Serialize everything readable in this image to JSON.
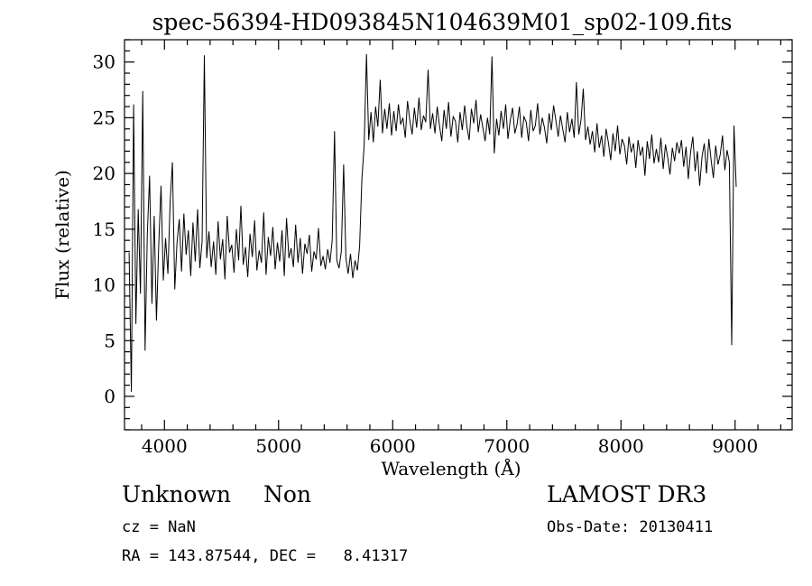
{
  "title": "spec-56394-HD093845N104639M01_sp02-109.fits",
  "chart_data": {
    "type": "line",
    "title": "spec-56394-HD093845N104639M01_sp02-109.fits",
    "xlabel": "Wavelength (Å)",
    "ylabel": "Flux (relative)",
    "xlim": [
      3650,
      9500
    ],
    "ylim": [
      -3,
      32
    ],
    "xticks": [
      4000,
      5000,
      6000,
      7000,
      8000,
      9000
    ],
    "yticks": [
      0,
      5,
      10,
      15,
      20,
      25,
      30
    ],
    "minor_xtick_step": 200,
    "minor_ytick_step": 1,
    "grid": false,
    "line_color": "#000000",
    "series": [
      {
        "name": "flux",
        "x_start": 3690,
        "x_step": 20,
        "values": [
          12.9,
          0.4,
          26.2,
          6.5,
          16.8,
          9.2,
          27.4,
          4.1,
          14.6,
          19.8,
          8.3,
          16.2,
          6.8,
          13.5,
          18.9,
          10.4,
          14.2,
          11.0,
          17.5,
          21.0,
          9.6,
          13.8,
          15.9,
          11.2,
          16.4,
          12.7,
          14.9,
          10.8,
          15.6,
          12.1,
          16.8,
          11.5,
          13.9,
          30.6,
          12.4,
          14.8,
          11.6,
          13.9,
          10.9,
          15.7,
          12.3,
          14.1,
          10.5,
          16.2,
          12.9,
          13.6,
          11.1,
          15.0,
          12.2,
          17.1,
          11.8,
          13.4,
          10.7,
          14.6,
          12.5,
          15.8,
          11.3,
          13.1,
          12.0,
          16.5,
          10.9,
          14.3,
          12.6,
          15.2,
          11.4,
          13.8,
          12.1,
          14.9,
          10.8,
          16.0,
          12.4,
          13.3,
          11.6,
          15.4,
          12.0,
          14.2,
          11.0,
          13.7,
          12.8,
          14.5,
          11.2,
          13.0,
          12.3,
          15.1,
          11.7,
          12.6,
          11.4,
          13.2,
          12.0,
          14.0,
          23.8,
          12.2,
          11.5,
          13.0,
          20.8,
          12.4,
          11.0,
          12.8,
          10.6,
          12.2,
          11.3,
          13.5,
          19.5,
          22.5,
          30.7,
          23.0,
          25.5,
          22.8,
          26.0,
          24.2,
          28.4,
          23.6,
          25.8,
          24.0,
          26.3,
          23.4,
          25.6,
          23.8,
          26.2,
          24.4,
          25.0,
          23.2,
          26.5,
          24.8,
          23.5,
          25.9,
          24.1,
          26.8,
          23.9,
          25.2,
          24.6,
          29.3,
          24.0,
          25.4,
          23.6,
          26.0,
          24.3,
          22.9,
          25.7,
          24.0,
          26.4,
          23.3,
          25.1,
          24.7,
          22.8,
          25.5,
          23.9,
          26.1,
          24.2,
          23.0,
          25.8,
          24.5,
          26.6,
          23.7,
          25.3,
          24.1,
          22.9,
          25.0,
          23.5,
          30.5,
          21.8,
          24.9,
          23.4,
          25.6,
          24.0,
          26.2,
          23.1,
          24.8,
          25.9,
          23.6,
          24.4,
          26.0,
          23.2,
          25.1,
          24.6,
          22.9,
          25.7,
          23.8,
          24.3,
          26.3,
          23.5,
          25.0,
          24.1,
          22.7,
          25.4,
          23.9,
          26.1,
          24.7,
          23.3,
          25.2,
          24.0,
          22.8,
          25.5,
          23.7,
          24.9,
          23.2,
          28.2,
          23.5,
          24.8,
          27.6,
          23.0,
          24.2,
          22.6,
          23.8,
          21.9,
          24.5,
          22.3,
          23.4,
          21.5,
          24.0,
          22.8,
          21.2,
          23.6,
          22.0,
          24.3,
          21.7,
          23.1,
          22.5,
          20.8,
          23.3,
          21.9,
          22.7,
          20.5,
          23.0,
          21.6,
          22.4,
          19.8,
          22.9,
          21.3,
          23.5,
          20.9,
          22.2,
          21.0,
          23.2,
          20.4,
          22.6,
          21.4,
          19.9,
          22.3,
          21.1,
          22.8,
          21.8,
          23.0,
          20.6,
          22.4,
          19.5,
          21.9,
          23.3,
          20.2,
          22.0,
          18.9,
          21.5,
          22.7,
          20.0,
          23.1,
          21.2,
          19.6,
          22.5,
          20.8,
          21.7,
          23.4,
          20.3,
          22.1,
          21.0,
          4.6,
          24.3,
          18.8
        ]
      }
    ]
  },
  "footer": {
    "classification": "Unknown",
    "subclass": "Non",
    "survey": "LAMOST DR3",
    "cz": "cz = NaN",
    "obs_date": "Obs-Date: 20130411",
    "coords": "RA = 143.87544, DEC =   8.41317"
  }
}
